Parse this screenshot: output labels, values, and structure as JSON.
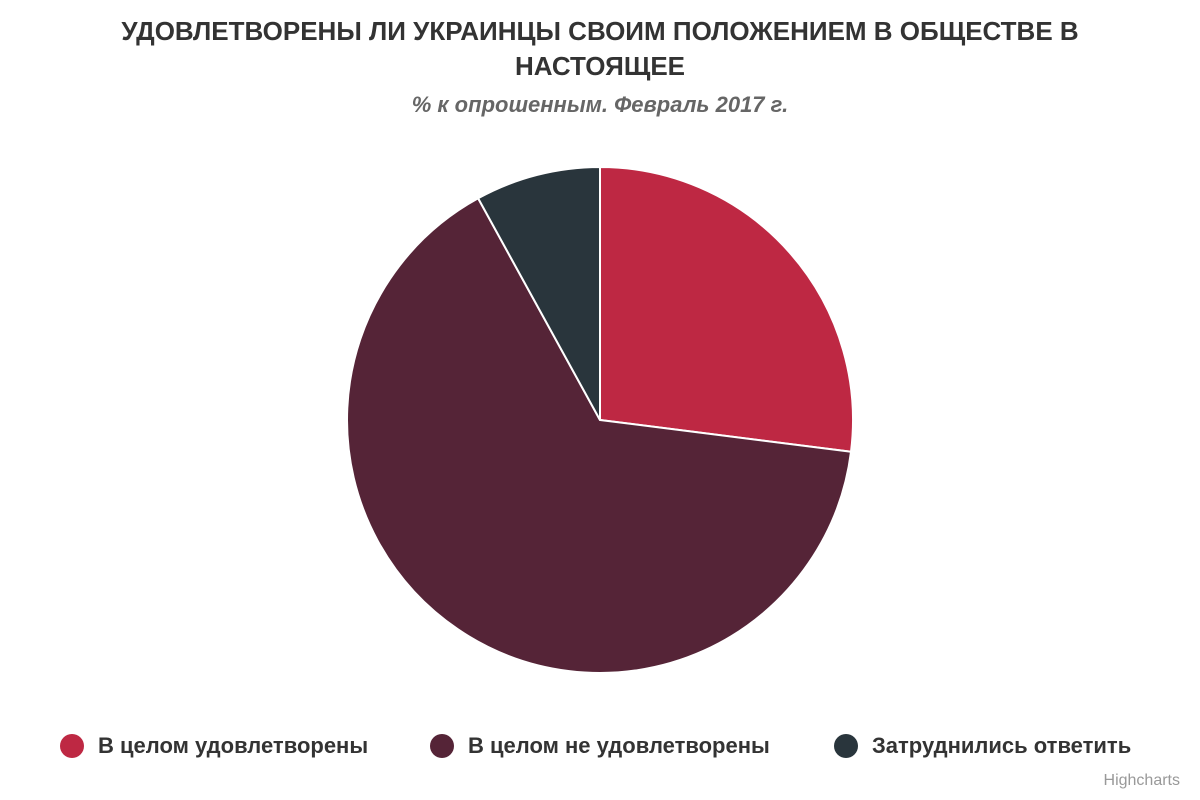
{
  "chart_data": {
    "type": "pie",
    "title": "УДОВЛЕТВОРЕНЫ ЛИ УКРАИНЦЫ СВОИМ ПОЛОЖЕНИЕМ В ОБЩЕСТВЕ В НАСТОЯЩЕЕ",
    "subtitle": "% к опрошенным. Февраль 2017 г.",
    "slices": [
      {
        "name": "В целом удовлетворены",
        "value": 27,
        "color": "#be2843"
      },
      {
        "name": "В целом не удовлетворены",
        "value": 65,
        "color": "#552437"
      },
      {
        "name": "Затруднились ответить",
        "value": 8,
        "color": "#29353c"
      }
    ],
    "legend_position": "bottom"
  },
  "credits": "Highcharts"
}
